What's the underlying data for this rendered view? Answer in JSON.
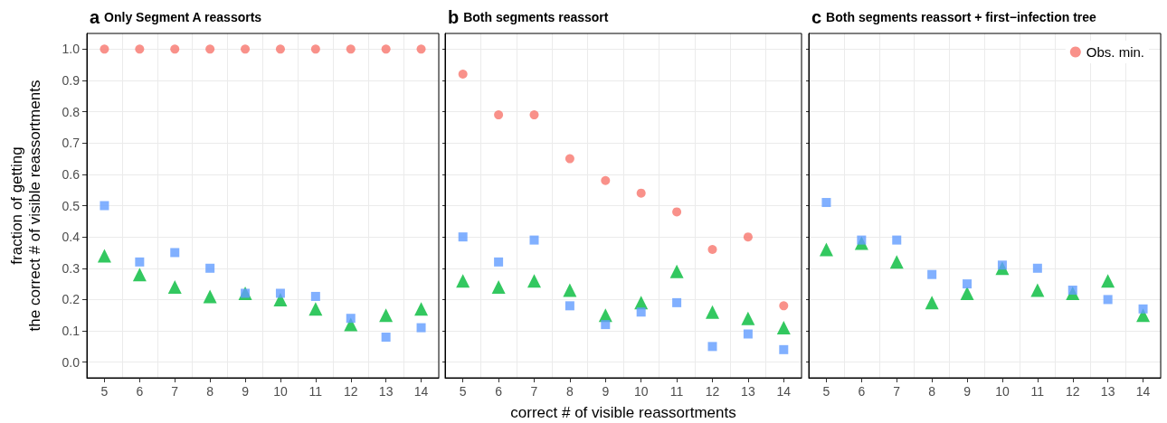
{
  "chart_data": [
    {
      "type": "scatter",
      "title": "a Only Segment A reassorts",
      "ylabel": "fraction of getting\nthe correct # of visible reassortments",
      "categories": [
        "5",
        "6",
        "7",
        "8",
        "9",
        "10",
        "11",
        "12",
        "13",
        "14"
      ],
      "ylim": [
        -0.05,
        1.05
      ],
      "yticks": [
        {
          "value": 0,
          "label": "0.0"
        },
        0.1,
        0.2,
        0.3,
        0.4,
        0.5,
        0.6,
        0.7,
        0.8,
        0.9,
        {
          "value": 1,
          "label": "1.0"
        }
      ],
      "grid": true,
      "legend": false,
      "series": [
        {
          "color": "#f8766d",
          "marker": "circle",
          "values": [
            1,
            1,
            1,
            1,
            1,
            1,
            1,
            1,
            1,
            1
          ]
        },
        {
          "color": "#00ba38",
          "marker": "triangle",
          "values": [
            0.34,
            0.28,
            0.24,
            0.21,
            0.22,
            0.2,
            0.17,
            0.12,
            0.15,
            0.17
          ]
        },
        {
          "color": "#619cff",
          "marker": "square",
          "values": [
            0.5,
            0.32,
            0.35,
            0.3,
            0.22,
            0.22,
            0.21,
            0.14,
            0.08,
            0.11
          ]
        }
      ]
    },
    {
      "type": "scatter",
      "title": "b Both segments reassort",
      "xlabel": "correct # of visible reassortments",
      "categories": [
        "5",
        "6",
        "7",
        "8",
        "9",
        "10",
        "11",
        "12",
        "13",
        "14"
      ],
      "ylim": [
        -0.05,
        1.05
      ],
      "yticks": [
        0,
        0.1,
        0.2,
        0.3,
        0.4,
        0.5,
        0.6,
        0.7,
        0.8,
        0.9,
        1
      ],
      "grid": true,
      "legend": false,
      "tick_labels": "x",
      "series": [
        {
          "color": "#f8766d",
          "marker": "circle",
          "values": [
            0.92,
            0.79,
            0.79,
            0.65,
            0.58,
            0.54,
            0.48,
            0.36,
            0.4,
            0.18
          ]
        },
        {
          "color": "#00ba38",
          "marker": "triangle",
          "values": [
            0.26,
            0.24,
            0.26,
            0.23,
            0.15,
            0.19,
            0.29,
            0.16,
            0.14,
            0.11
          ]
        },
        {
          "color": "#619cff",
          "marker": "square",
          "values": [
            0.4,
            0.32,
            0.39,
            0.18,
            0.12,
            0.16,
            0.19,
            0.05,
            0.09,
            0.04
          ]
        }
      ]
    },
    {
      "type": "scatter",
      "title": "c Both segments reassort + first−infection tree",
      "categories": [
        "5",
        "6",
        "7",
        "8",
        "9",
        "10",
        "11",
        "12",
        "13",
        "14"
      ],
      "ylim": [
        -0.05,
        1.05
      ],
      "yticks": [
        0,
        0.1,
        0.2,
        0.3,
        0.4,
        0.5,
        0.6,
        0.7,
        0.8,
        0.9,
        1
      ],
      "grid": true,
      "legend": "top right",
      "tick_labels": "x",
      "series": [
        {
          "name": "Obs. min.",
          "color": "#f8766d",
          "marker": "circle",
          "values": [
            null,
            null,
            null,
            null,
            null,
            null,
            null,
            null,
            null,
            null
          ]
        },
        {
          "color": "#00ba38",
          "marker": "triangle",
          "values": [
            0.36,
            0.38,
            0.32,
            0.19,
            0.22,
            0.3,
            0.23,
            0.22,
            0.26,
            0.15
          ]
        },
        {
          "color": "#619cff",
          "marker": "square",
          "values": [
            0.51,
            0.39,
            0.39,
            0.28,
            0.25,
            0.31,
            0.3,
            0.23,
            0.2,
            0.17
          ]
        }
      ]
    }
  ]
}
